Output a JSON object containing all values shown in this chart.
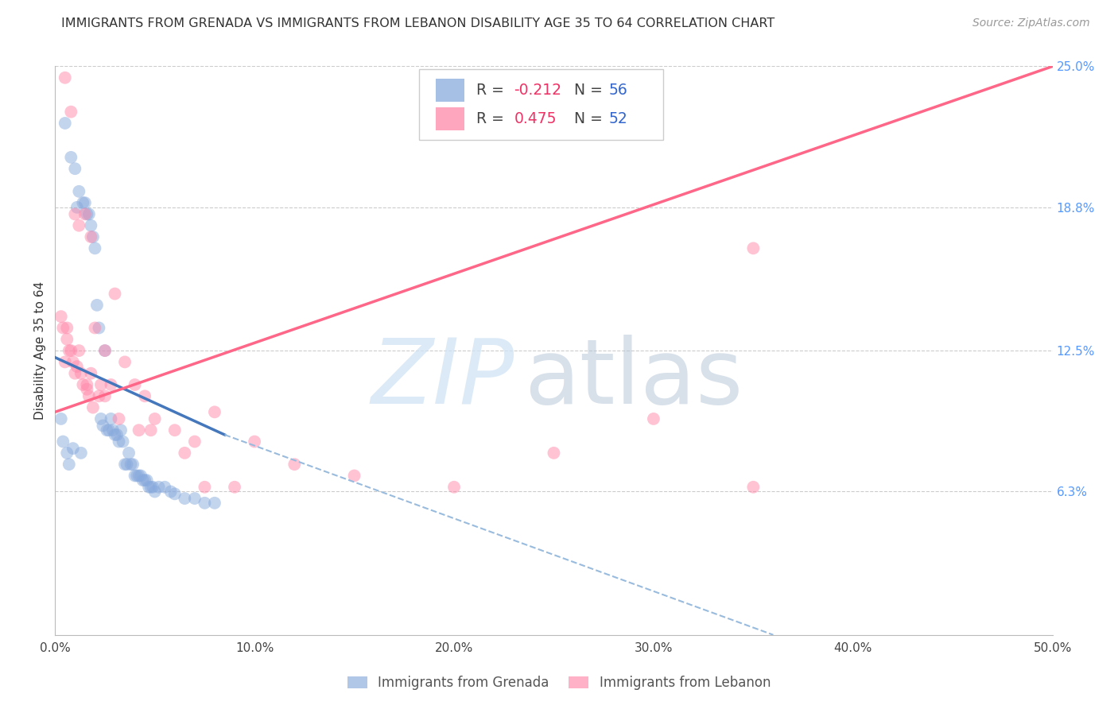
{
  "title": "IMMIGRANTS FROM GRENADA VS IMMIGRANTS FROM LEBANON DISABILITY AGE 35 TO 64 CORRELATION CHART",
  "source": "Source: ZipAtlas.com",
  "ylabel": "Disability Age 35 to 64",
  "legend_label_1": "Immigrants from Grenada",
  "legend_label_2": "Immigrants from Lebanon",
  "R1": -0.212,
  "N1": 56,
  "R2": 0.475,
  "N2": 52,
  "color_blue": "#88AADD",
  "color_pink": "#FF88AA",
  "xlim": [
    0.0,
    50.0
  ],
  "ylim": [
    0.0,
    25.0
  ],
  "xticks": [
    0.0,
    10.0,
    20.0,
    30.0,
    40.0,
    50.0
  ],
  "yticks": [
    0.0,
    6.3,
    12.5,
    18.8,
    25.0
  ],
  "xtick_labels": [
    "0.0%",
    "10.0%",
    "20.0%",
    "30.0%",
    "40.0%",
    "50.0%"
  ],
  "ytick_labels": [
    "",
    "6.3%",
    "12.5%",
    "18.8%",
    "25.0%"
  ],
  "blue_line_x0": 0.0,
  "blue_line_y0": 12.2,
  "blue_line_x1": 8.5,
  "blue_line_y1": 8.8,
  "blue_dash_x1": 8.5,
  "blue_dash_y1": 8.8,
  "blue_dash_x2": 36.0,
  "blue_dash_y2": 0.0,
  "pink_line_x0": 0.0,
  "pink_line_y0": 9.8,
  "pink_line_x1": 50.0,
  "pink_line_y1": 25.0,
  "grenada_x": [
    0.3,
    0.4,
    0.5,
    0.6,
    0.7,
    0.8,
    0.9,
    1.0,
    1.1,
    1.2,
    1.3,
    1.4,
    1.5,
    1.6,
    1.7,
    1.8,
    1.9,
    2.0,
    2.1,
    2.2,
    2.3,
    2.4,
    2.5,
    2.6,
    2.7,
    2.8,
    2.9,
    3.0,
    3.1,
    3.2,
    3.3,
    3.4,
    3.5,
    3.6,
    3.7,
    3.8,
    3.9,
    4.0,
    4.1,
    4.2,
    4.3,
    4.4,
    4.5,
    4.6,
    4.7,
    4.8,
    4.9,
    5.0,
    5.2,
    5.5,
    5.8,
    6.0,
    6.5,
    7.0,
    7.5,
    8.0
  ],
  "grenada_y": [
    9.5,
    8.5,
    22.5,
    8.0,
    7.5,
    21.0,
    8.2,
    20.5,
    18.8,
    19.5,
    8.0,
    19.0,
    19.0,
    18.5,
    18.5,
    18.0,
    17.5,
    17.0,
    14.5,
    13.5,
    9.5,
    9.2,
    12.5,
    9.0,
    9.0,
    9.5,
    9.0,
    8.8,
    8.8,
    8.5,
    9.0,
    8.5,
    7.5,
    7.5,
    8.0,
    7.5,
    7.5,
    7.0,
    7.0,
    7.0,
    7.0,
    6.8,
    6.8,
    6.8,
    6.5,
    6.5,
    6.5,
    6.3,
    6.5,
    6.5,
    6.3,
    6.2,
    6.0,
    6.0,
    5.8,
    5.8
  ],
  "lebanon_x": [
    0.3,
    0.4,
    0.5,
    0.6,
    0.7,
    0.8,
    0.9,
    1.0,
    1.1,
    1.2,
    1.3,
    1.4,
    1.5,
    1.6,
    1.7,
    1.8,
    1.9,
    2.0,
    2.2,
    2.5,
    2.8,
    3.0,
    3.5,
    4.0,
    4.5,
    5.0,
    6.0,
    7.0,
    8.0,
    10.0,
    12.0,
    15.0,
    20.0,
    25.0,
    30.0,
    35.0,
    0.5,
    0.8,
    1.2,
    1.8,
    2.3,
    3.2,
    4.8,
    6.5,
    9.0,
    0.6,
    1.0,
    1.6,
    2.5,
    4.2,
    7.5,
    35.0
  ],
  "lebanon_y": [
    14.0,
    13.5,
    24.5,
    13.0,
    12.5,
    23.0,
    12.0,
    18.5,
    11.8,
    18.0,
    11.5,
    11.0,
    18.5,
    10.8,
    10.5,
    17.5,
    10.0,
    13.5,
    10.5,
    12.5,
    11.0,
    15.0,
    12.0,
    11.0,
    10.5,
    9.5,
    9.0,
    8.5,
    9.8,
    8.5,
    7.5,
    7.0,
    6.5,
    8.0,
    9.5,
    6.5,
    12.0,
    12.5,
    12.5,
    11.5,
    11.0,
    9.5,
    9.0,
    8.0,
    6.5,
    13.5,
    11.5,
    11.0,
    10.5,
    9.0,
    6.5,
    17.0
  ]
}
